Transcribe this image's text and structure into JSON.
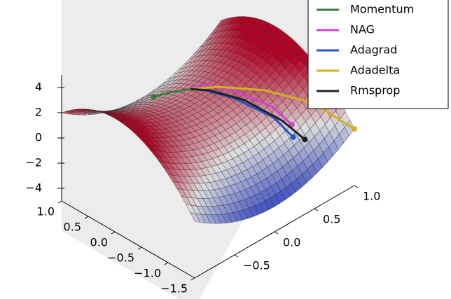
{
  "chart_data": {
    "type": "surface3d",
    "xlim": [
      -1.5,
      1
    ],
    "ylim": [
      -1,
      1
    ],
    "zlim": [
      -5,
      5
    ],
    "xticks": [
      {
        "value": 1,
        "label": "1.0"
      },
      0.5,
      {
        "value": 0,
        "label": "0.0"
      },
      {
        "value": -0.5,
        "label": "−0.5"
      },
      {
        "value": -1,
        "label": "−1.0"
      },
      {
        "value": -1.5,
        "label": "−1.5"
      }
    ],
    "yticks": [
      {
        "value": 1,
        "label": "1.0"
      },
      0.5,
      {
        "value": 0,
        "label": "0.0"
      },
      {
        "value": -0.5,
        "label": "−0.5"
      }
    ],
    "zticks": [
      4,
      2,
      0,
      {
        "value": -2,
        "label": "−2"
      },
      {
        "value": -4,
        "label": "−4"
      }
    ],
    "legend": "upper right",
    "series": [
      {
        "name": "Momentum",
        "color": "#3a7d3a",
        "x": [
          0.3,
          0.5,
          0.7
        ],
        "y": [
          0.15,
          0.05,
          -0.05
        ],
        "z": [
          1.38,
          1.01,
          0.53
        ]
      },
      {
        "name": "NAG",
        "color": "#cc44cc",
        "x": [
          0.3,
          0.2,
          -0.2,
          -0.7,
          -1.0
        ],
        "y": [
          0.15,
          0.25,
          0.35,
          0.5,
          0.55
        ],
        "z": [
          1.38,
          1.58,
          1.73,
          1.15,
          0.26
        ]
      },
      {
        "name": "Adagrad",
        "color": "#2255cc",
        "x": [
          0.3,
          0.1,
          -0.3,
          -0.8,
          -1.1
        ],
        "y": [
          0.15,
          0.2,
          0.3,
          0.45,
          0.5
        ],
        "z": [
          1.38,
          1.58,
          1.55,
          0.73,
          -0.3
        ]
      },
      {
        "name": "Adadelta",
        "color": "#d4b020",
        "x": [
          0.3,
          0.0,
          -0.5,
          -1.0,
          -1.5
        ],
        "y": [
          0.15,
          0.3,
          0.55,
          0.8,
          1.0
        ],
        "z": [
          1.38,
          1.73,
          1.76,
          1.1,
          -0.5
        ]
      },
      {
        "name": "Rmsprop",
        "color": "#222222",
        "x": [
          0.3,
          0.05,
          -0.4,
          -0.9,
          -1.2
        ],
        "y": [
          0.15,
          0.22,
          0.35,
          0.5,
          0.58
        ],
        "z": [
          1.38,
          1.62,
          1.49,
          0.5,
          -0.54
        ]
      }
    ]
  }
}
